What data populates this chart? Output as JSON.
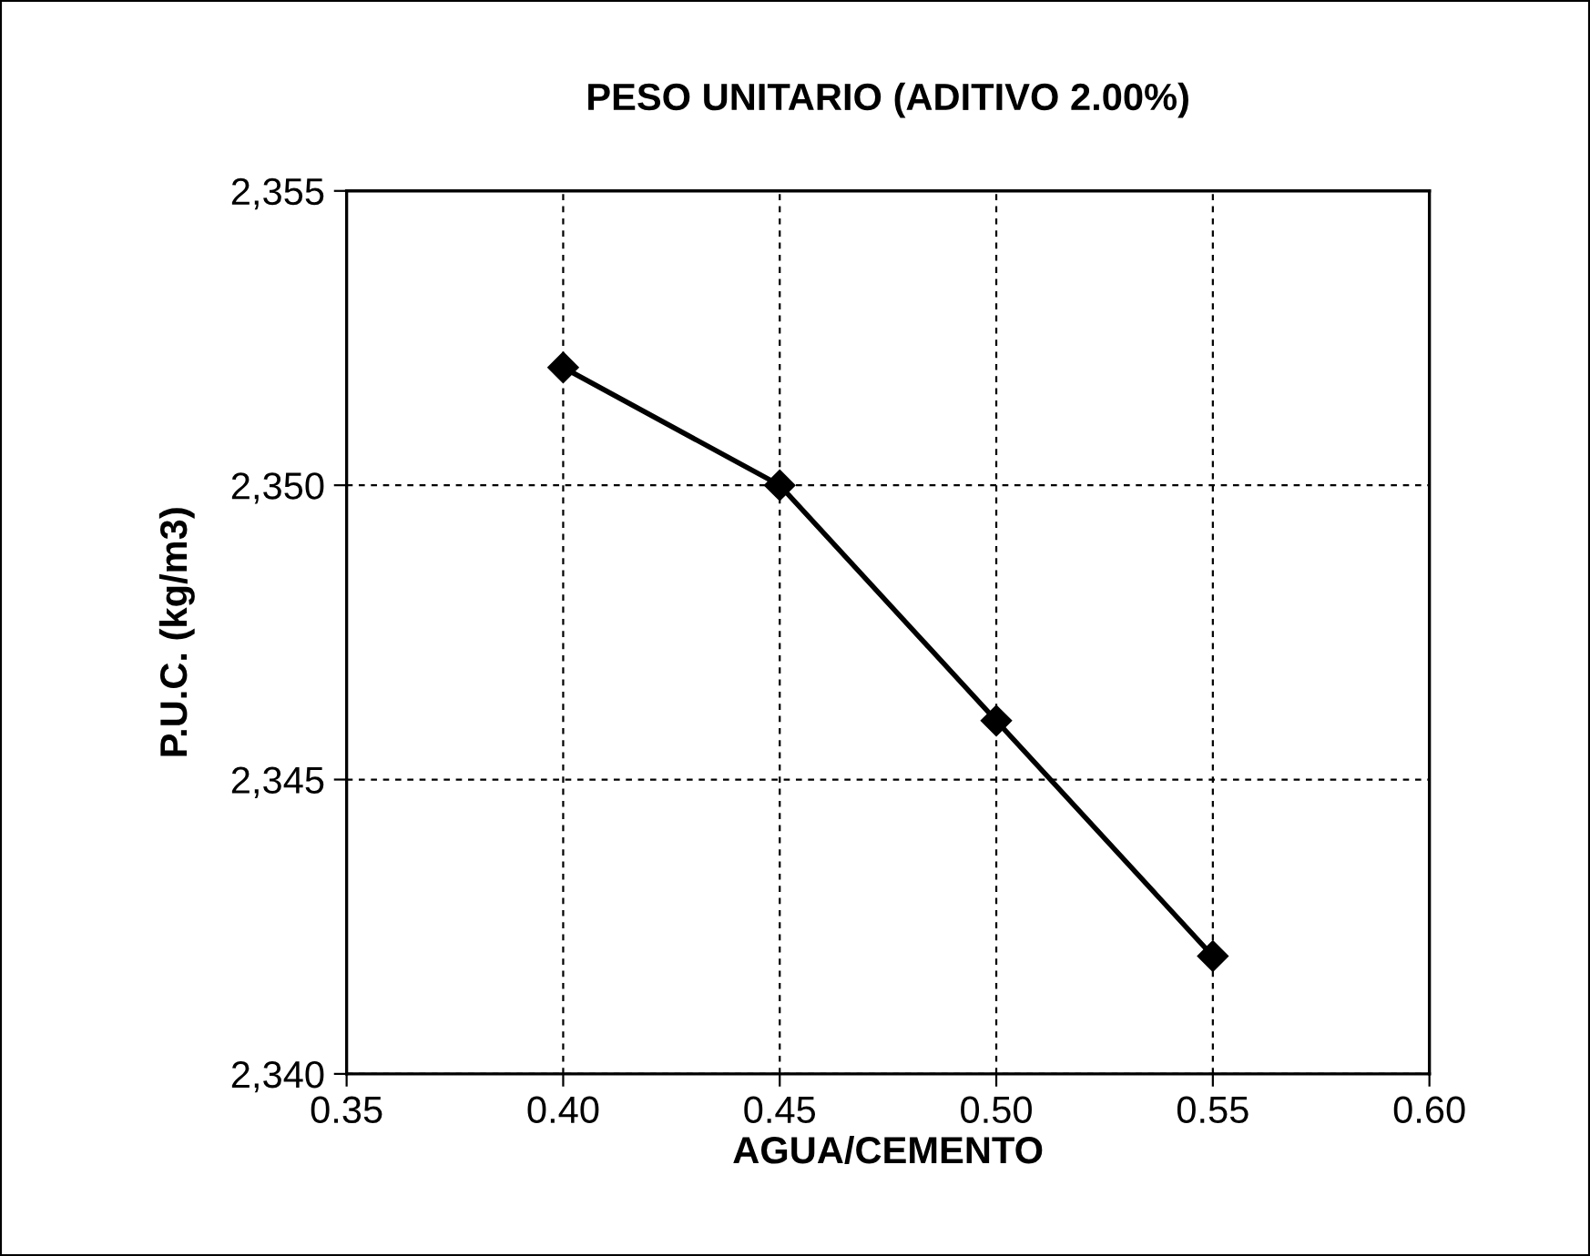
{
  "chart_data": {
    "type": "line",
    "title": "PESO UNITARIO (ADITIVO 2.00%)",
    "xlabel": "AGUA/CEMENTO",
    "ylabel": "P.U.C. (kg/m3)",
    "x": [
      0.4,
      0.45,
      0.5,
      0.55
    ],
    "series": [
      {
        "color": "#000000",
        "values": [
          2352,
          2350,
          2346,
          2342
        ]
      }
    ],
    "xlim": [
      0.35,
      0.6
    ],
    "xticks": [
      0.35,
      {
        "value": 0.4,
        "label": "0.40"
      },
      0.45,
      {
        "value": 0.5,
        "label": "0.50"
      },
      0.55,
      {
        "value": 0.6,
        "label": "0.60"
      }
    ],
    "ylim": [
      2340,
      2355
    ],
    "yticks": [
      {
        "value": 2340,
        "label": "2,340"
      },
      {
        "value": 2345,
        "label": "2,345"
      },
      {
        "value": 2350,
        "label": "2,350"
      },
      {
        "value": 2355,
        "label": "2,355"
      }
    ],
    "grid": true,
    "marker": "diamond",
    "line_style": "solid",
    "legend": false
  }
}
